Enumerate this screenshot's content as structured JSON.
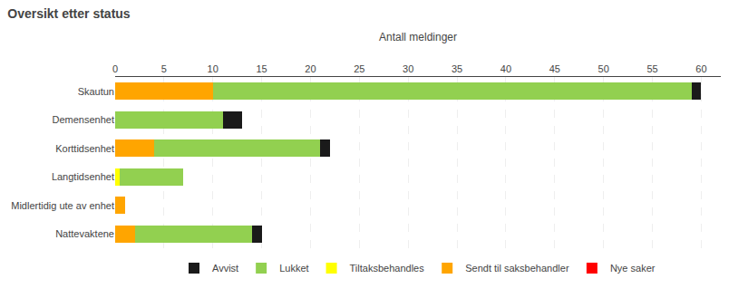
{
  "chart_data": {
    "type": "bar",
    "title": "Oversikt etter status",
    "xlabel": "Antall meldinger",
    "categories": [
      "Skautun",
      "Demensenhet",
      "Korttidsenhet",
      "Langtidsenhet",
      "Midlertidig ute av enhet",
      "Nattevaktene"
    ],
    "series": [
      {
        "name": "Nye saker",
        "color": "#ff0000",
        "values": [
          0,
          0,
          0,
          0,
          0,
          0
        ]
      },
      {
        "name": "Sendt til saksbehandler",
        "color": "#ffa500",
        "values": [
          10,
          0,
          4,
          0,
          1,
          2
        ]
      },
      {
        "name": "Tiltaksbehandles",
        "color": "#ffff00",
        "values": [
          0,
          0,
          0,
          0.5,
          0,
          0
        ]
      },
      {
        "name": "Lukket",
        "color": "#92d050",
        "values": [
          49,
          11,
          17,
          6.5,
          0,
          12
        ]
      },
      {
        "name": "Avvist",
        "color": "#1a1a1a",
        "values": [
          1,
          2,
          1,
          0,
          0,
          1
        ]
      }
    ],
    "xlim": [
      0,
      62
    ],
    "xticks": [
      0,
      5,
      10,
      15,
      20,
      25,
      30,
      35,
      40,
      45,
      50,
      55,
      60
    ],
    "orientation": "horizontal",
    "stacked": true,
    "grid": true,
    "legend": "bottom"
  }
}
